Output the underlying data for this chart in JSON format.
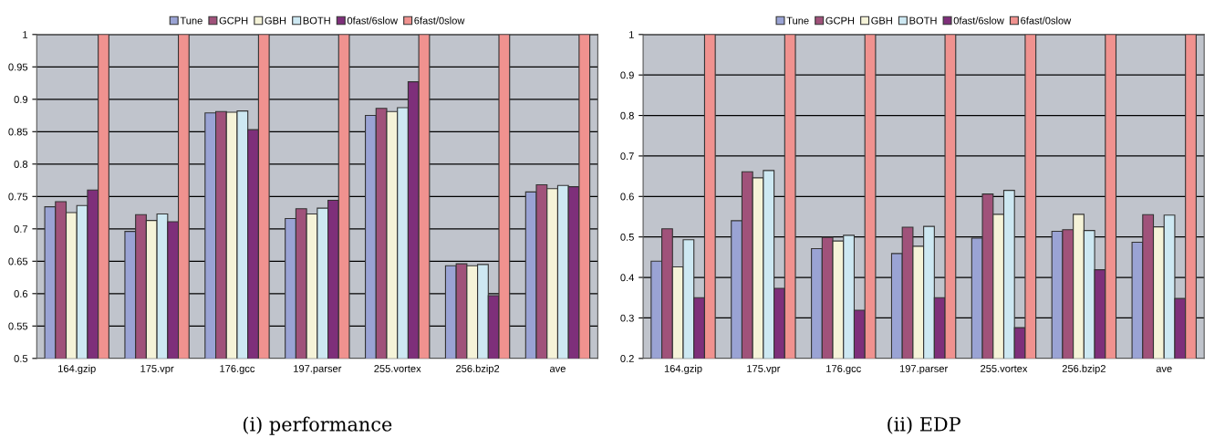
{
  "chart_data": [
    {
      "type": "bar",
      "title": "(i) performance",
      "categories": [
        "164.gzip",
        "175.vpr",
        "176.gcc",
        "197.parser",
        "255.vortex",
        "256.bzip2",
        "ave"
      ],
      "series": [
        {
          "name": "Tune",
          "color": "#9aa3d4",
          "values": [
            0.734,
            0.696,
            0.879,
            0.716,
            0.875,
            0.643,
            0.757
          ]
        },
        {
          "name": "GCPH",
          "color": "#a0527a",
          "values": [
            0.742,
            0.722,
            0.881,
            0.731,
            0.886,
            0.646,
            0.768
          ]
        },
        {
          "name": "GBH",
          "color": "#f5f3d8",
          "values": [
            0.725,
            0.713,
            0.88,
            0.723,
            0.881,
            0.643,
            0.762
          ]
        },
        {
          "name": "BOTH",
          "color": "#cde8f2",
          "values": [
            0.736,
            0.723,
            0.882,
            0.732,
            0.887,
            0.645,
            0.767
          ]
        },
        {
          "name": "0fast/6slow",
          "color": "#7e2f7a",
          "values": [
            0.76,
            0.711,
            0.853,
            0.744,
            0.927,
            0.597,
            0.765
          ]
        },
        {
          "name": "6fast/0slow",
          "color": "#f0928f",
          "values": [
            1,
            1,
            1,
            1,
            1,
            1,
            1
          ]
        }
      ],
      "ylim": [
        0.5,
        1
      ],
      "yticks": [
        0.5,
        0.55,
        0.6,
        0.65,
        0.7,
        0.75,
        0.8,
        0.85,
        0.9,
        0.95,
        1
      ],
      "grid": "y",
      "legend": "top"
    },
    {
      "type": "bar",
      "title": "(ii) EDP",
      "categories": [
        "164.gzip",
        "175.vpr",
        "176.gcc",
        "197.parser",
        "255.vortex",
        "256.bzip2",
        "ave"
      ],
      "series": [
        {
          "name": "Tune",
          "color": "#9aa3d4",
          "values": [
            0.44,
            0.54,
            0.471,
            0.459,
            0.497,
            0.514,
            0.487
          ]
        },
        {
          "name": "GCPH",
          "color": "#a0527a",
          "values": [
            0.52,
            0.661,
            0.499,
            0.524,
            0.606,
            0.518,
            0.555
          ]
        },
        {
          "name": "GBH",
          "color": "#f5f3d8",
          "values": [
            0.426,
            0.646,
            0.49,
            0.477,
            0.556,
            0.556,
            0.525
          ]
        },
        {
          "name": "BOTH",
          "color": "#cde8f2",
          "values": [
            0.493,
            0.664,
            0.504,
            0.526,
            0.615,
            0.516,
            0.554
          ]
        },
        {
          "name": "0fast/6slow",
          "color": "#7e2f7a",
          "values": [
            0.35,
            0.373,
            0.319,
            0.35,
            0.276,
            0.419,
            0.348
          ]
        },
        {
          "name": "6fast/0slow",
          "color": "#f0928f",
          "values": [
            1,
            1,
            1,
            1,
            1,
            1,
            1
          ]
        }
      ],
      "ylim": [
        0.2,
        1
      ],
      "yticks": [
        0.2,
        0.3,
        0.4,
        0.5,
        0.6,
        0.7,
        0.8,
        0.9,
        1
      ],
      "grid": "y",
      "legend": "top"
    }
  ]
}
